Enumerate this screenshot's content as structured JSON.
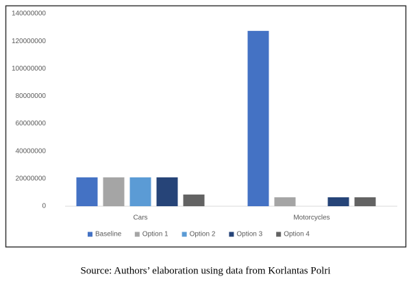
{
  "chart_data": {
    "type": "bar",
    "categories": [
      "Cars",
      "Motorcycles"
    ],
    "series": [
      {
        "name": "Baseline",
        "color": "#4472c4",
        "values": [
          21000000,
          127500000
        ]
      },
      {
        "name": "Option 1",
        "color": "#a5a5a5",
        "values": [
          21000000,
          6500000
        ]
      },
      {
        "name": "Option 2",
        "color": "#5b9bd5",
        "values": [
          21000000,
          null
        ]
      },
      {
        "name": "Option 3",
        "color": "#264478",
        "values": [
          21000000,
          6500000
        ]
      },
      {
        "name": "Option 4",
        "color": "#636363",
        "values": [
          8500000,
          6500000
        ]
      }
    ],
    "ylim": [
      0,
      140000000
    ],
    "yticks": [
      0,
      20000000,
      40000000,
      60000000,
      80000000,
      100000000,
      120000000,
      140000000
    ],
    "grid": false,
    "legend": "bottom"
  },
  "caption": "Source: Authors’ elaboration using data from Korlantas Polri"
}
